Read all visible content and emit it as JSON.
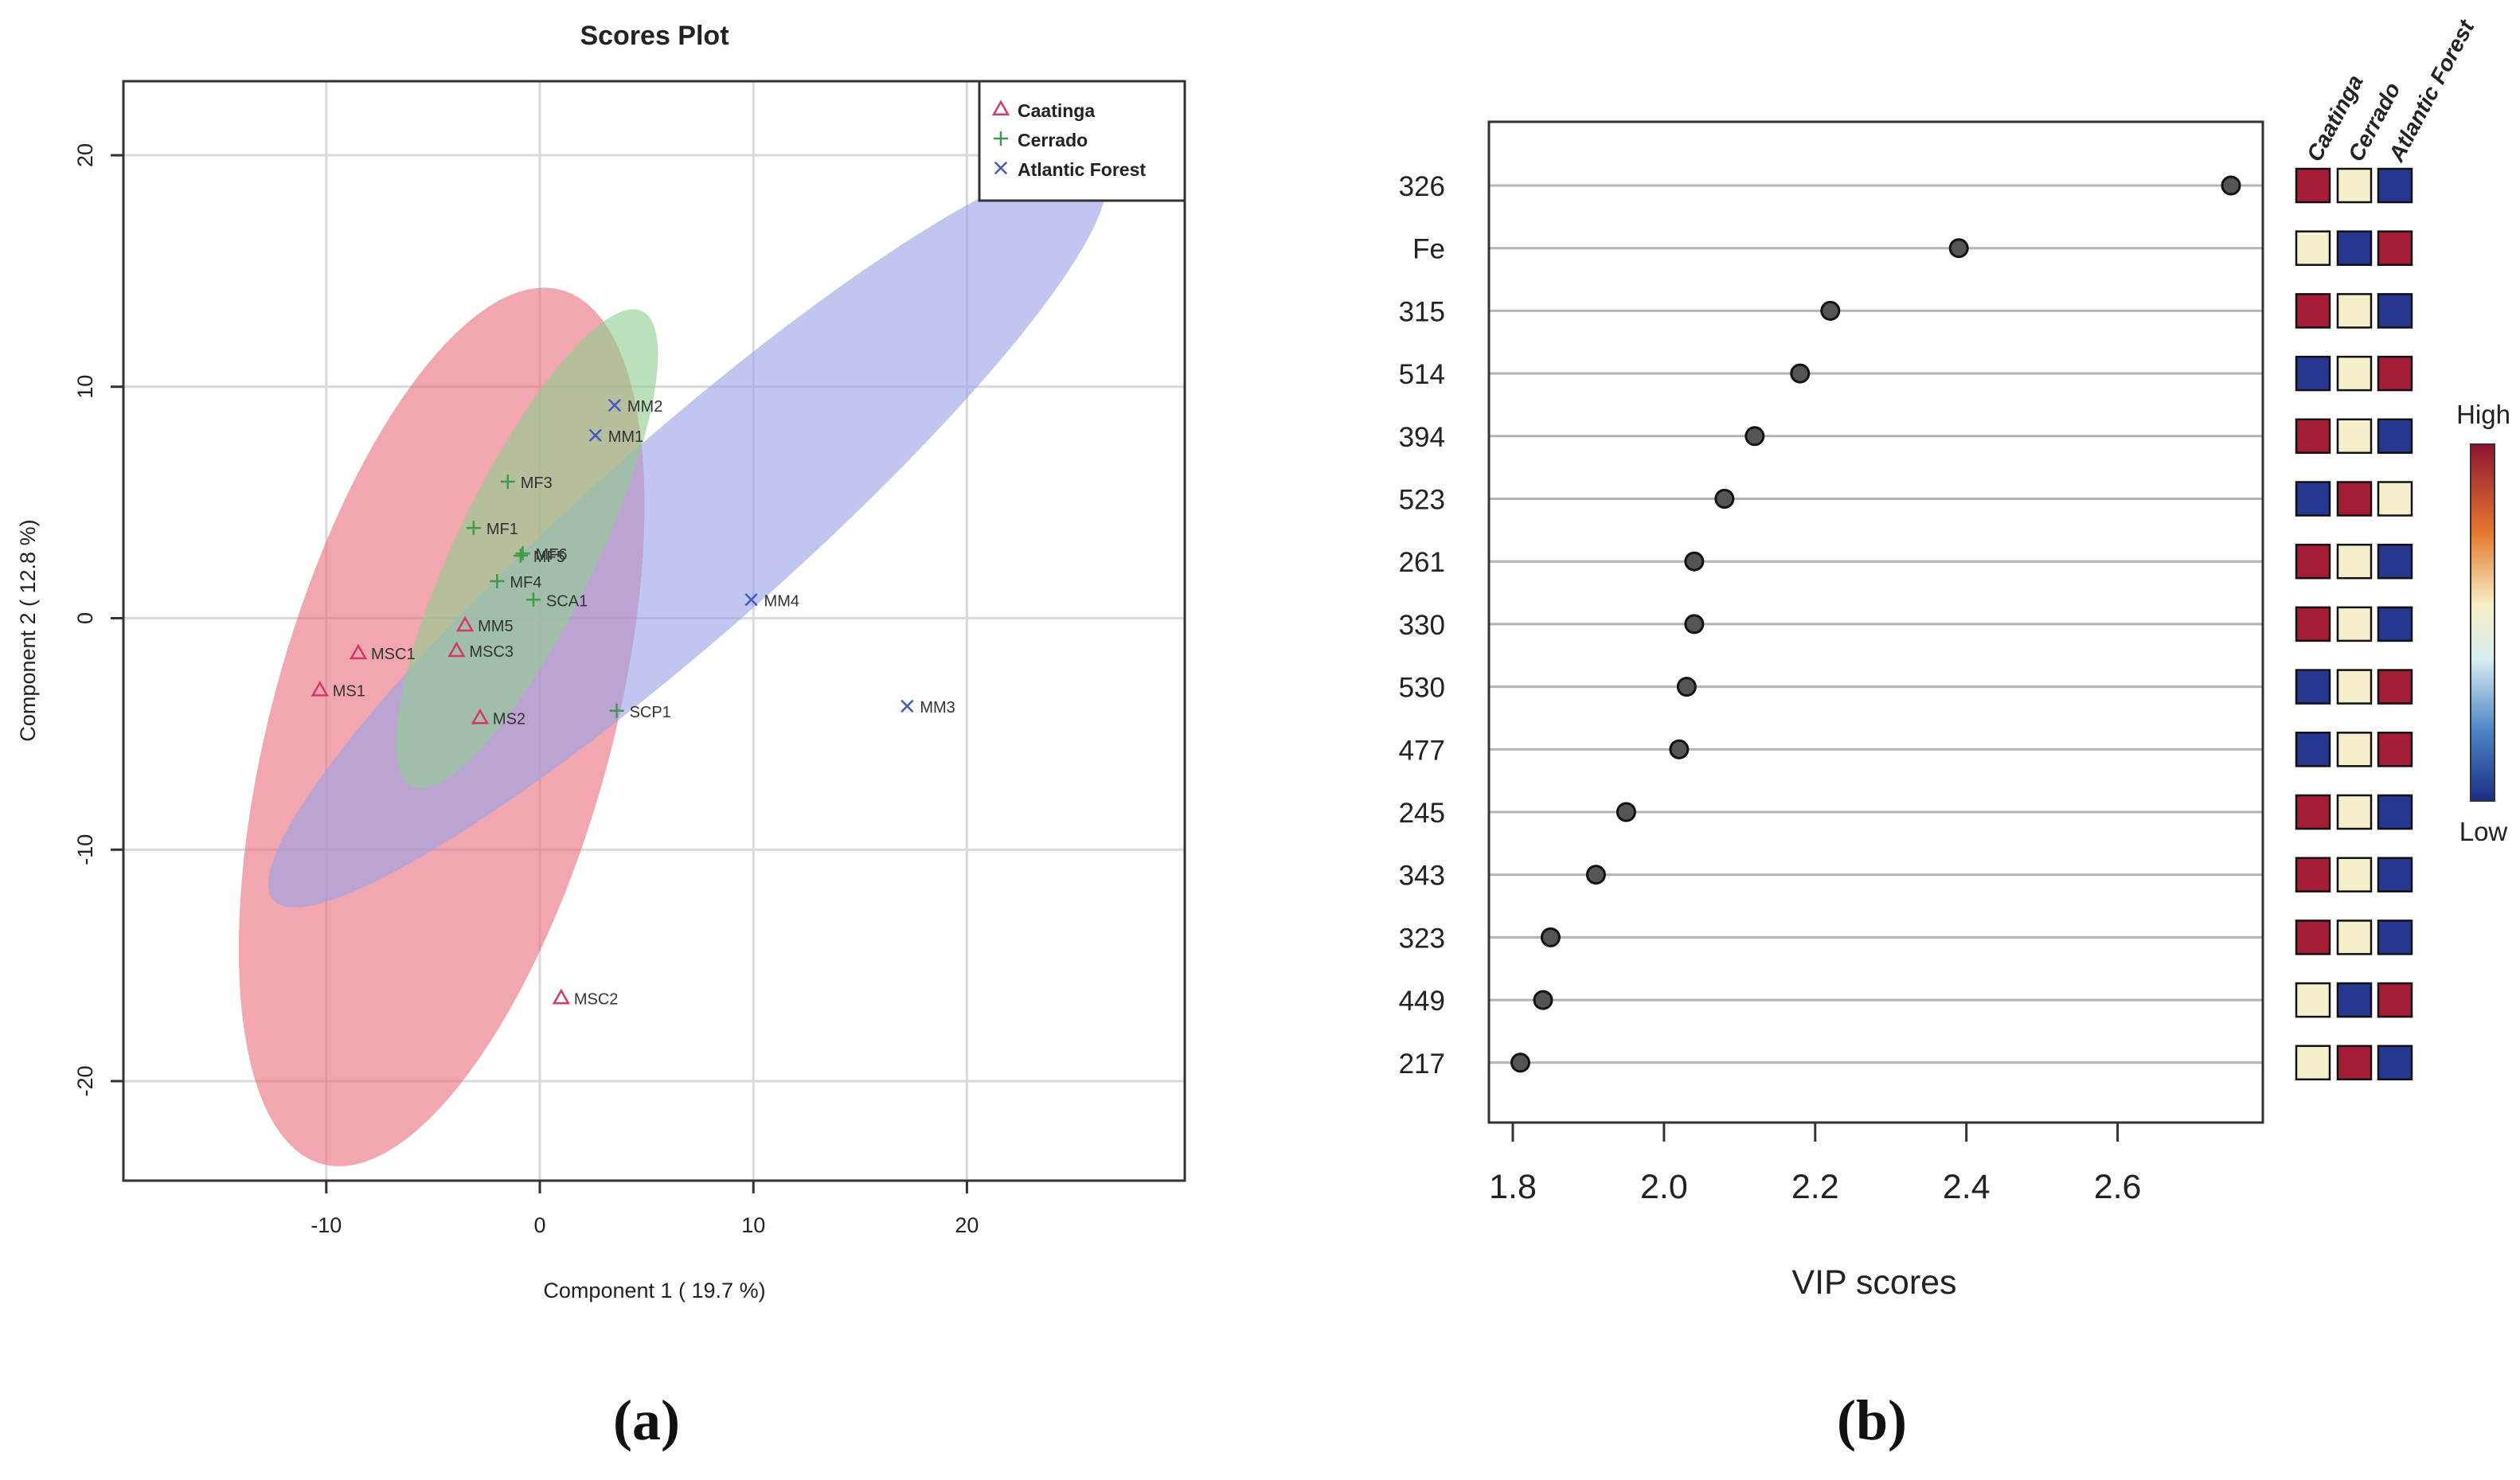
{
  "chart_data": [
    {
      "id": "a",
      "type": "scatter",
      "panel_label": "(a)",
      "title": "Scores Plot",
      "xlabel": "Component 1 ( 19.7 %)",
      "ylabel": "Component 2 ( 12.8 %)",
      "xlim": [
        -19.5,
        30.2
      ],
      "ylim": [
        -24.3,
        23.2
      ],
      "xticks": [
        -10,
        0,
        10,
        20
      ],
      "yticks": [
        -20,
        -10,
        0,
        10,
        20
      ],
      "grid": true,
      "legend_position": "top-right",
      "series": [
        {
          "name": "Caatinga",
          "marker": "triangle",
          "color": "#d6376a",
          "fill": "#e8707f",
          "ellipse": {
            "center": [
              -4.6,
              -4.7
            ],
            "semi_axes": [
              19.7,
              7.9
            ],
            "angle_deg": 73
          },
          "points": [
            {
              "label": "MM5",
              "x": -3.5,
              "y": -0.3
            },
            {
              "label": "MSC1",
              "x": -8.5,
              "y": -1.5
            },
            {
              "label": "MSC3",
              "x": -3.9,
              "y": -1.4
            },
            {
              "label": "MS1",
              "x": -10.3,
              "y": -3.1
            },
            {
              "label": "MS2",
              "x": -2.8,
              "y": -4.3
            },
            {
              "label": "MSC2",
              "x": 1.0,
              "y": -16.4
            }
          ]
        },
        {
          "name": "Cerrado",
          "marker": "plus",
          "color": "#3f9a4c",
          "fill": "#8fcf8f",
          "ellipse": {
            "center": [
              -0.6,
              3.0
            ],
            "semi_axes": [
              11.6,
              3.2
            ],
            "angle_deg": 62
          },
          "points": [
            {
              "label": "MF3",
              "x": -1.5,
              "y": 5.9
            },
            {
              "label": "MF1",
              "x": -3.1,
              "y": 3.9
            },
            {
              "label": "MF5",
              "x": -0.9,
              "y": 2.7
            },
            {
              "label": "MF6",
              "x": -0.8,
              "y": 2.8
            },
            {
              "label": "MF4",
              "x": -2.0,
              "y": 1.6
            },
            {
              "label": "SCA1",
              "x": -0.3,
              "y": 0.8
            },
            {
              "label": "SCP1",
              "x": 3.6,
              "y": -4.0
            }
          ]
        },
        {
          "name": "Atlantic Forest",
          "marker": "cross",
          "color": "#4857c4",
          "fill": "#9aa3e6",
          "ellipse": {
            "center": [
              6.9,
              3.6
            ],
            "semi_axes": [
              25.0,
              4.4
            ],
            "angle_deg": 39
          },
          "points": [
            {
              "label": "MM2",
              "x": 3.5,
              "y": 9.2
            },
            {
              "label": "MM1",
              "x": 2.6,
              "y": 7.9
            },
            {
              "label": "MM4",
              "x": 9.9,
              "y": 0.8
            },
            {
              "label": "MM3",
              "x": 17.2,
              "y": -3.8
            }
          ]
        }
      ],
      "legend": [
        "Caatinga",
        "Cerrado",
        "Atlantic Forest"
      ],
      "overlap_label": "MF5"
    },
    {
      "id": "b",
      "type": "dot",
      "panel_label": "(b)",
      "xlabel": "VIP scores",
      "xlim": [
        1.8,
        2.75
      ],
      "xticks": [
        "1.8",
        "2.0",
        "2.2",
        "2.4",
        "2.6"
      ],
      "categories": [
        "326",
        "Fe",
        "315",
        "514",
        "394",
        "523",
        "261",
        "330",
        "530",
        "477",
        "245",
        "343",
        "323",
        "449",
        "217"
      ],
      "values": [
        2.75,
        2.39,
        2.22,
        2.18,
        2.12,
        2.08,
        2.04,
        2.04,
        2.03,
        2.02,
        1.95,
        1.91,
        1.85,
        1.84,
        1.81
      ],
      "heatmap": {
        "columns": [
          "Caatinga",
          "Cerrado",
          "Atlantic Forest"
        ],
        "levels": {
          "H": "#a51c36",
          "M": "#f5f0cc",
          "L": "#27378f"
        },
        "rows": [
          [
            "H",
            "M",
            "L"
          ],
          [
            "M",
            "L",
            "H"
          ],
          [
            "H",
            "M",
            "L"
          ],
          [
            "L",
            "M",
            "H"
          ],
          [
            "H",
            "M",
            "L"
          ],
          [
            "L",
            "H",
            "M"
          ],
          [
            "H",
            "M",
            "L"
          ],
          [
            "H",
            "M",
            "L"
          ],
          [
            "L",
            "M",
            "H"
          ],
          [
            "L",
            "M",
            "H"
          ],
          [
            "H",
            "M",
            "L"
          ],
          [
            "H",
            "M",
            "L"
          ],
          [
            "H",
            "M",
            "L"
          ],
          [
            "M",
            "L",
            "H"
          ],
          [
            "M",
            "H",
            "L"
          ]
        ]
      },
      "colorbar": {
        "high_label": "High",
        "low_label": "Low"
      }
    }
  ]
}
